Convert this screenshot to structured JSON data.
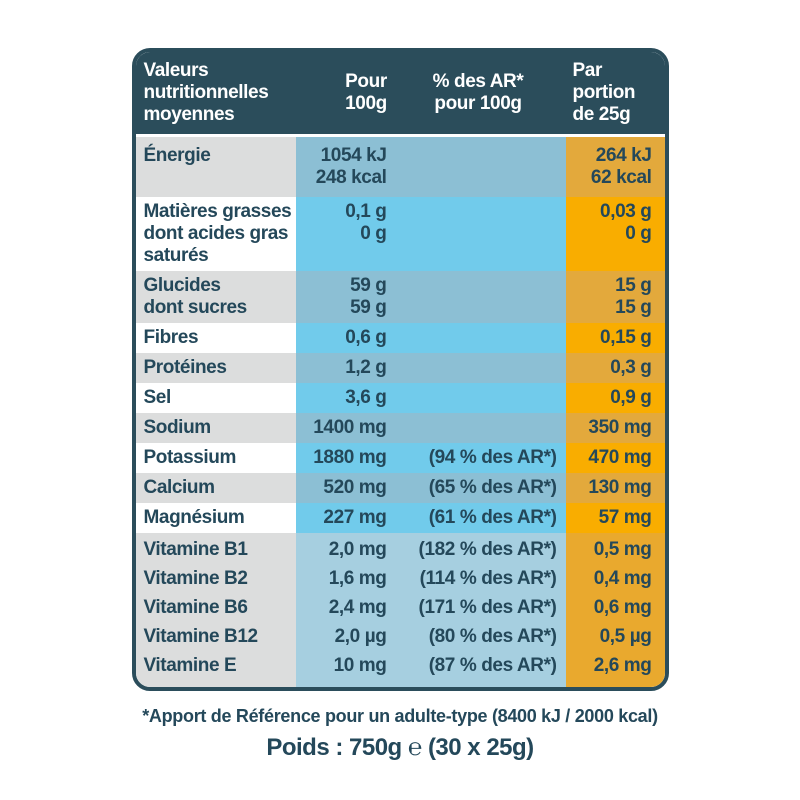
{
  "table": {
    "header": {
      "values_label": "Valeurs\nnutritionnelles\nmoyennes",
      "per100_label": "Pour\n100g",
      "ar_label": "% des AR*\npour 100g",
      "portion_label": "Par\nportion\nde 25g"
    },
    "rows": [
      {
        "label": "Énergie",
        "per_100g": "1054 kJ\n248 kcal",
        "percent_ar": "",
        "per_portion": "264 kJ\n62 kcal",
        "variant": "muted"
      },
      {
        "label": "Matières grasses\ndont acides gras\nsaturés",
        "per_100g": "0,1 g\n0 g",
        "percent_ar": "",
        "per_portion": "0,03 g\n0 g",
        "variant": "bright"
      },
      {
        "label": "Glucides\ndont sucres",
        "per_100g": "59 g\n59 g",
        "percent_ar": "",
        "per_portion": "15 g\n15 g",
        "variant": "muted"
      },
      {
        "label": "Fibres",
        "per_100g": "0,6 g",
        "percent_ar": "",
        "per_portion": "0,15 g",
        "variant": "bright"
      },
      {
        "label": "Protéines",
        "per_100g": "1,2 g",
        "percent_ar": "",
        "per_portion": "0,3 g",
        "variant": "muted"
      },
      {
        "label": "Sel",
        "per_100g": "3,6 g",
        "percent_ar": "",
        "per_portion": "0,9 g",
        "variant": "bright"
      },
      {
        "label": "Sodium",
        "per_100g": "1400 mg",
        "percent_ar": "",
        "per_portion": "350 mg",
        "variant": "muted"
      },
      {
        "label": "Potassium",
        "per_100g": "1880 mg",
        "percent_ar": "(94 % des AR*)",
        "per_portion": "470 mg",
        "variant": "bright"
      },
      {
        "label": "Calcium",
        "per_100g": "520 mg",
        "percent_ar": "(65 % des AR*)",
        "per_portion": "130 mg",
        "variant": "muted"
      },
      {
        "label": "Magnésium",
        "per_100g": "227 mg",
        "percent_ar": "(61 % des AR*)",
        "per_portion": "57 mg",
        "variant": "bright"
      },
      {
        "label": "Vitamine B1",
        "per_100g": "2,0 mg",
        "percent_ar": "(182 % des AR*)",
        "per_portion": "0,5 mg",
        "variant": "vitamin"
      },
      {
        "label": "Vitamine B2",
        "per_100g": "1,6 mg",
        "percent_ar": "(114 % des AR*)",
        "per_portion": "0,4 mg",
        "variant": "vitamin"
      },
      {
        "label": "Vitamine B6",
        "per_100g": "2,4 mg",
        "percent_ar": "(171 % des AR*)",
        "per_portion": "0,6 mg",
        "variant": "vitamin"
      },
      {
        "label": "Vitamine B12",
        "per_100g": "2,0 µg",
        "percent_ar": "(80 % des AR*)",
        "per_portion": "0,5 µg",
        "variant": "vitamin"
      },
      {
        "label": "Vitamine E",
        "per_100g": "10 mg",
        "percent_ar": "(87 % des AR*)",
        "per_portion": "2,6 mg",
        "variant": "vitamin"
      }
    ]
  },
  "footnote": "*Apport de Référence pour un adulte-type (8400 kJ / 2000 kcal)",
  "weight_line": "Poids : 750g ℮ (30 x 25g)",
  "colors": {
    "header_bg": "#2b4d5b",
    "text_dark": "#24485a",
    "label_gray": "#dcdddd",
    "blue_muted": "#8cbfd4",
    "blue_bright": "#71cbeb",
    "blue_vitamin": "#a6cfe0",
    "orange_muted": "#e3a93c",
    "orange_bright": "#f9ad00",
    "orange_vitamin": "#e9a92e"
  }
}
